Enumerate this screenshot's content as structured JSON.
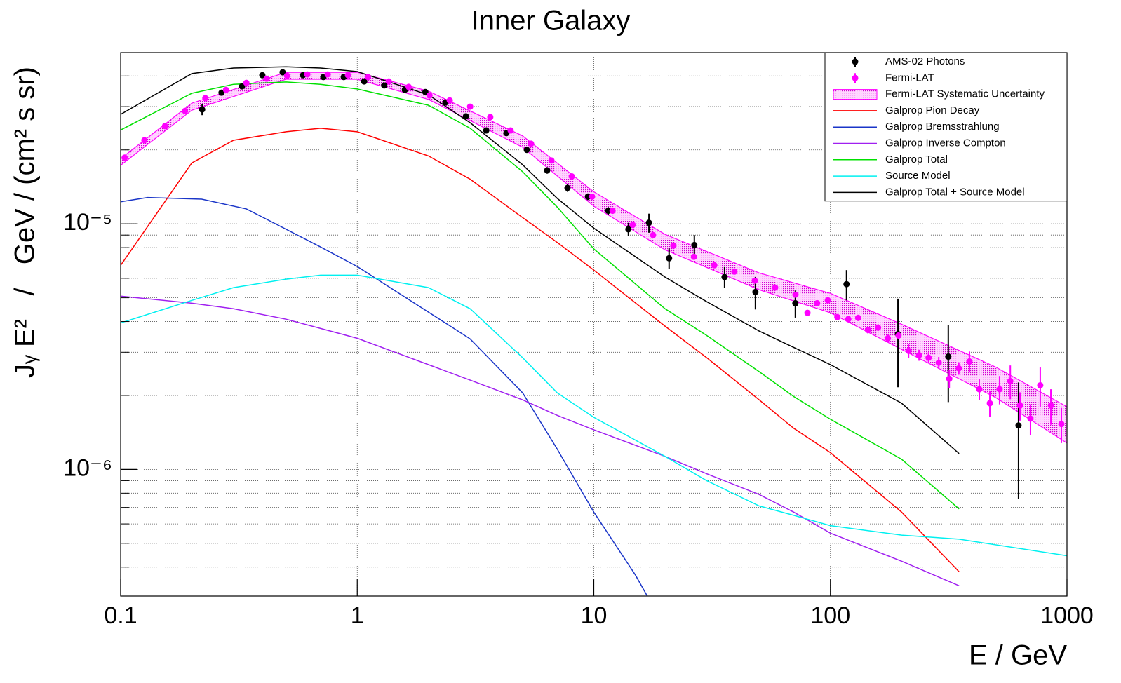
{
  "chart_data": {
    "type": "line",
    "title": "Inner Galaxy",
    "x_label": "E / GeV",
    "y_label": "Jᵧ E²   /   GeV / (cm² s sr)",
    "xlog": true,
    "ylog": true,
    "xlim": [
      0.1,
      1000
    ],
    "ylim": [
      3.05e-07,
      4.98e-05
    ],
    "xticks": [
      0.1,
      1,
      10,
      100,
      1000
    ],
    "yticks": [
      {
        "value": 1e-06,
        "label": "10⁻⁶"
      },
      {
        "value": 1e-05,
        "label": "10⁻⁵"
      }
    ],
    "y_minor_ticks": [
      4e-07,
      5e-07,
      6e-07,
      7e-07,
      8e-07,
      9e-07,
      2e-06,
      3e-06,
      4e-06,
      5e-06,
      6e-06,
      7e-06,
      8e-06,
      9e-06,
      2e-05,
      3e-05,
      4e-05
    ],
    "grid": true,
    "legend": "upper right",
    "series": [
      {
        "name": "AMS-02 Photons",
        "kind": "points",
        "color": "#000000",
        "x": [
          0.221,
          0.267,
          0.326,
          0.397,
          0.484,
          0.59,
          0.719,
          0.877,
          1.07,
          1.3,
          1.59,
          1.94,
          2.36,
          2.88,
          3.51,
          4.27,
          5.21,
          6.35,
          7.74,
          9.44,
          11.5,
          14.0,
          17.1,
          20.8,
          26.6,
          35.7,
          48.2,
          71.1,
          117,
          193,
          315,
          624
        ],
        "values": [
          2.92e-05,
          3.42e-05,
          3.63e-05,
          4.03e-05,
          4.14e-05,
          4.03e-05,
          3.96e-05,
          3.96e-05,
          3.8e-05,
          3.66e-05,
          3.51e-05,
          3.44e-05,
          3.12e-05,
          2.74e-05,
          2.4e-05,
          2.34e-05,
          2e-05,
          1.65e-05,
          1.4e-05,
          1.29e-05,
          1.13e-05,
          9.5e-06,
          1.01e-05,
          7.24e-06,
          8.2e-06,
          6.07e-06,
          5.28e-06,
          4.75e-06,
          5.68e-06,
          3.56e-06,
          2.88e-06,
          1.51e-06
        ],
        "errors": [
          1.5e-06,
          9e-07,
          9e-07,
          1e-06,
          1e-06,
          1e-06,
          1e-06,
          1e-06,
          9e-07,
          9e-07,
          9e-07,
          9e-07,
          8e-07,
          7e-07,
          6e-07,
          6e-07,
          5e-07,
          5e-07,
          5e-07,
          4e-07,
          4e-07,
          6e-07,
          9e-07,
          7e-07,
          8e-07,
          6e-07,
          8e-07,
          6e-07,
          8e-07,
          1.4e-06,
          1e-06,
          7.5e-07
        ]
      },
      {
        "name": "Fermi-LAT",
        "kind": "points",
        "color": "#ff00ff",
        "x": [
          0.104,
          0.126,
          0.154,
          0.187,
          0.228,
          0.279,
          0.34,
          0.414,
          0.505,
          0.615,
          0.75,
          0.914,
          1.11,
          1.36,
          1.65,
          2.02,
          2.46,
          3.0,
          3.65,
          4.45,
          5.43,
          6.62,
          8.07,
          9.83,
          12.0,
          14.6,
          17.8,
          21.7,
          26.5,
          32.3,
          39.3,
          47.9,
          58.4,
          71.2,
          80.0,
          87.9,
          97.5,
          107,
          119,
          131,
          144,
          159,
          175,
          194,
          214,
          237,
          260,
          287,
          318,
          349,
          387,
          426,
          472,
          519,
          576,
          633,
          701,
          771,
          855,
          947
        ],
        "values": [
          1.86e-05,
          2.19e-05,
          2.5e-05,
          2.88e-05,
          3.25e-05,
          3.51e-05,
          3.75e-05,
          3.9e-05,
          4.01e-05,
          4.06e-05,
          4.06e-05,
          4.03e-05,
          3.96e-05,
          3.8e-05,
          3.61e-05,
          3.33e-05,
          3.18e-05,
          3e-05,
          2.72e-05,
          2.4e-05,
          2.12e-05,
          1.81e-05,
          1.56e-05,
          1.29e-05,
          1.13e-05,
          9.9e-06,
          9e-06,
          8.15e-06,
          7.34e-06,
          6.78e-06,
          6.39e-06,
          5.87e-06,
          5.5e-06,
          5.15e-06,
          4.34e-06,
          4.75e-06,
          4.88e-06,
          4.17e-06,
          4.09e-06,
          4.14e-06,
          3.7e-06,
          3.78e-06,
          3.42e-06,
          3.51e-06,
          3.04e-06,
          2.92e-06,
          2.85e-06,
          2.72e-06,
          2.34e-06,
          2.58e-06,
          2.75e-06,
          2.12e-06,
          1.86e-06,
          2.12e-06,
          2.29e-06,
          1.82e-06,
          1.61e-06,
          2.2e-06,
          1.82e-06,
          1.53e-06
        ],
        "errors": [
          null,
          null,
          null,
          null,
          null,
          null,
          null,
          null,
          null,
          null,
          null,
          null,
          null,
          null,
          null,
          null,
          null,
          null,
          null,
          null,
          null,
          null,
          null,
          null,
          null,
          null,
          null,
          null,
          null,
          null,
          null,
          null,
          null,
          null,
          1.2e-07,
          1.2e-07,
          1.2e-07,
          1.2e-07,
          1.2e-07,
          1.2e-07,
          1.2e-07,
          1.2e-07,
          1.2e-07,
          1.2e-07,
          2e-07,
          1.5e-07,
          1.5e-07,
          1.5e-07,
          2e-07,
          1.5e-07,
          2.7e-07,
          2.1e-07,
          2.2e-07,
          2.8e-07,
          3.6e-07,
          2.4e-07,
          2.3e-07,
          4e-07,
          3e-07,
          2.5e-07
        ]
      },
      {
        "name": "Fermi-LAT Systematic Uncertainty",
        "kind": "band",
        "color": "#ff00ff",
        "x": [
          0.1,
          0.2,
          0.5,
          1,
          2,
          5,
          10,
          20,
          50,
          100,
          200,
          500,
          1000
        ],
        "upper": [
          1.84e-05,
          3.1e-05,
          4.14e-05,
          4.14e-05,
          3.47e-05,
          2.28e-05,
          1.35e-05,
          9.06e-06,
          6.31e-06,
          5.21e-06,
          3.9e-06,
          2.61e-06,
          1.8e-06
        ],
        "lower": [
          1.73e-05,
          2.9e-05,
          3.88e-05,
          3.88e-05,
          3.21e-05,
          2.05e-05,
          1.18e-05,
          7.84e-06,
          5.39e-06,
          4.34e-06,
          3.08e-06,
          1.96e-06,
          1.28e-06
        ]
      },
      {
        "name": "Galprop Pion Decay",
        "kind": "line",
        "color": "#ff0000",
        "x": [
          0.1,
          0.2,
          0.3,
          0.5,
          0.7,
          1,
          2,
          3,
          5,
          7,
          10,
          20,
          30,
          50,
          70,
          100,
          200,
          350
        ],
        "values": [
          6.78e-06,
          1.77e-05,
          2.19e-05,
          2.37e-05,
          2.45e-05,
          2.37e-05,
          1.89e-05,
          1.52e-05,
          1.06e-05,
          8.4e-06,
          6.48e-06,
          3.83e-06,
          2.85e-06,
          1.92e-06,
          1.47e-06,
          1.17e-06,
          6.7e-07,
          3.83e-07
        ]
      },
      {
        "name": "Galprop Bremsstrahlung",
        "kind": "line",
        "color": "#1a35c8",
        "x": [
          0.1,
          0.13,
          0.22,
          0.34,
          0.7,
          1,
          2,
          3,
          5,
          7,
          10,
          15,
          17.5
        ],
        "values": [
          1.23e-05,
          1.28e-05,
          1.26e-05,
          1.15e-05,
          8.05e-06,
          6.7e-06,
          4.37e-06,
          3.4e-06,
          2.05e-06,
          1.21e-06,
          6.7e-07,
          3.71e-07,
          2.85e-07
        ]
      },
      {
        "name": "Galprop Inverse Compton",
        "kind": "line",
        "color": "#a020f0",
        "x": [
          0.1,
          0.2,
          0.3,
          0.5,
          0.7,
          1,
          2,
          3,
          5,
          7,
          10,
          20,
          30,
          50,
          70,
          100,
          200,
          350
        ],
        "values": [
          5.08e-06,
          4.75e-06,
          4.51e-06,
          4.09e-06,
          3.75e-06,
          3.42e-06,
          2.67e-06,
          2.31e-06,
          1.92e-06,
          1.66e-06,
          1.45e-06,
          1.13e-06,
          9.6e-07,
          7.9e-07,
          6.7e-07,
          5.5e-07,
          4.23e-07,
          3.36e-07
        ]
      },
      {
        "name": "Galprop Total",
        "kind": "line",
        "color": "#00e000",
        "x": [
          0.1,
          0.2,
          0.3,
          0.5,
          0.7,
          1,
          2,
          3,
          5,
          7,
          10,
          20,
          30,
          50,
          70,
          100,
          200,
          350
        ],
        "values": [
          2.41e-05,
          3.4e-05,
          3.7e-05,
          3.78e-05,
          3.7e-05,
          3.54e-05,
          3.04e-05,
          2.45e-05,
          1.63e-05,
          1.17e-05,
          7.9e-06,
          4.51e-06,
          3.51e-06,
          2.5e-06,
          1.98e-06,
          1.6e-06,
          1.1e-06,
          6.9e-07
        ]
      },
      {
        "name": "Source Model",
        "kind": "line",
        "color": "#00f0f0",
        "x": [
          0.1,
          0.2,
          0.3,
          0.5,
          0.7,
          1,
          2,
          3,
          5,
          7,
          10,
          20,
          30,
          50,
          70,
          100,
          200,
          350,
          1000
        ],
        "values": [
          3.95e-06,
          4.88e-06,
          5.5e-06,
          5.95e-06,
          6.18e-06,
          6.18e-06,
          5.5e-06,
          4.51e-06,
          2.85e-06,
          2.05e-06,
          1.63e-06,
          1.13e-06,
          9e-07,
          7.1e-07,
          6.5e-07,
          5.9e-07,
          5.4e-07,
          5.2e-07,
          4.45e-07
        ]
      },
      {
        "name": "Galprop Total + Source Model",
        "kind": "line",
        "color": "#000000",
        "x": [
          0.1,
          0.2,
          0.3,
          0.5,
          0.7,
          1,
          2,
          3,
          5,
          7,
          10,
          20,
          30,
          50,
          70,
          100,
          200,
          350
        ],
        "values": [
          2.79e-05,
          4.09e-05,
          4.31e-05,
          4.36e-05,
          4.31e-05,
          4.17e-05,
          3.35e-05,
          2.58e-05,
          1.74e-05,
          1.27e-05,
          9.6e-06,
          6.07e-06,
          4.82e-06,
          3.66e-06,
          3.14e-06,
          2.67e-06,
          1.86e-06,
          1.16e-06
        ]
      }
    ]
  }
}
